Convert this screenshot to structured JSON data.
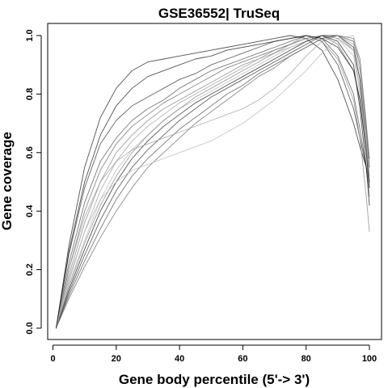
{
  "chart_data": {
    "type": "line",
    "title": "GSE36552| TruSeq",
    "xlabel": "Gene body percentile (5'-> 3')",
    "ylabel": "Gene coverage",
    "xlim": [
      1,
      100
    ],
    "ylim": [
      0,
      1.0
    ],
    "xticks": [
      0,
      20,
      40,
      60,
      80,
      100
    ],
    "yticks": [
      0.0,
      0.2,
      0.4,
      0.6,
      0.8,
      1.0
    ],
    "xtick_labels": [
      "0",
      "20",
      "40",
      "60",
      "80",
      "100"
    ],
    "ytick_labels": [
      "0.0",
      "0.2",
      "0.4",
      "0.6",
      "0.8",
      "1.0"
    ],
    "grid": false,
    "legend": "none",
    "line_color": "#000000",
    "series_description_note": "",
    "series": [
      {
        "x": [
          1,
          5,
          10,
          15,
          20,
          25,
          30,
          35,
          40,
          45,
          50,
          55,
          60,
          65,
          70,
          75,
          80,
          85,
          90,
          95,
          97,
          99,
          100
        ],
        "values": [
          0.0,
          0.28,
          0.55,
          0.72,
          0.82,
          0.88,
          0.91,
          0.92,
          0.93,
          0.94,
          0.95,
          0.96,
          0.97,
          0.98,
          0.99,
          1.0,
          0.99,
          0.95,
          0.85,
          0.7,
          0.62,
          0.55,
          0.5
        ]
      },
      {
        "x": [
          1,
          5,
          10,
          15,
          20,
          25,
          30,
          35,
          40,
          45,
          50,
          55,
          60,
          65,
          70,
          75,
          80,
          85,
          90,
          95,
          97,
          99,
          100
        ],
        "values": [
          0.0,
          0.25,
          0.48,
          0.63,
          0.71,
          0.76,
          0.79,
          0.82,
          0.85,
          0.87,
          0.9,
          0.92,
          0.94,
          0.96,
          0.98,
          0.99,
          1.0,
          0.98,
          0.9,
          0.75,
          0.65,
          0.55,
          0.48
        ]
      },
      {
        "x": [
          1,
          5,
          10,
          15,
          20,
          25,
          30,
          35,
          40,
          45,
          50,
          55,
          60,
          65,
          70,
          75,
          80,
          85,
          90,
          95,
          97,
          99,
          100
        ],
        "values": [
          0.0,
          0.22,
          0.43,
          0.57,
          0.65,
          0.71,
          0.75,
          0.78,
          0.82,
          0.85,
          0.88,
          0.9,
          0.92,
          0.94,
          0.96,
          0.98,
          1.0,
          0.99,
          0.93,
          0.8,
          0.68,
          0.55,
          0.45
        ]
      },
      {
        "x": [
          1,
          5,
          10,
          15,
          20,
          25,
          30,
          35,
          40,
          45,
          50,
          55,
          60,
          65,
          70,
          75,
          80,
          85,
          90,
          95,
          97,
          99,
          100
        ],
        "values": [
          0.0,
          0.2,
          0.4,
          0.54,
          0.63,
          0.69,
          0.73,
          0.77,
          0.8,
          0.83,
          0.86,
          0.89,
          0.91,
          0.93,
          0.95,
          0.97,
          0.99,
          1.0,
          0.97,
          0.88,
          0.78,
          0.6,
          0.5
        ]
      },
      {
        "x": [
          1,
          5,
          10,
          15,
          20,
          25,
          30,
          35,
          40,
          45,
          50,
          55,
          60,
          65,
          70,
          75,
          80,
          85,
          90,
          95,
          97,
          99,
          100
        ],
        "values": [
          0.0,
          0.18,
          0.36,
          0.5,
          0.6,
          0.66,
          0.71,
          0.75,
          0.78,
          0.81,
          0.84,
          0.87,
          0.9,
          0.92,
          0.95,
          0.97,
          0.99,
          1.0,
          0.99,
          0.95,
          0.85,
          0.65,
          0.52
        ]
      },
      {
        "x": [
          1,
          5,
          10,
          15,
          20,
          25,
          30,
          35,
          40,
          45,
          50,
          55,
          60,
          65,
          70,
          75,
          80,
          85,
          90,
          95,
          97,
          99,
          100
        ],
        "values": [
          0.0,
          0.16,
          0.33,
          0.47,
          0.57,
          0.64,
          0.69,
          0.73,
          0.77,
          0.8,
          0.83,
          0.86,
          0.89,
          0.92,
          0.94,
          0.96,
          0.98,
          1.0,
          1.0,
          0.97,
          0.88,
          0.66,
          0.55
        ]
      },
      {
        "x": [
          1,
          5,
          10,
          15,
          20,
          25,
          30,
          35,
          40,
          45,
          50,
          55,
          60,
          65,
          70,
          75,
          80,
          85,
          90,
          95,
          97,
          99,
          100
        ],
        "values": [
          0.0,
          0.15,
          0.3,
          0.44,
          0.54,
          0.61,
          0.66,
          0.71,
          0.75,
          0.78,
          0.81,
          0.84,
          0.87,
          0.9,
          0.93,
          0.96,
          0.98,
          1.0,
          0.99,
          0.93,
          0.8,
          0.6,
          0.45
        ]
      },
      {
        "x": [
          1,
          5,
          10,
          15,
          20,
          25,
          30,
          35,
          40,
          45,
          50,
          55,
          60,
          65,
          70,
          75,
          80,
          85,
          90,
          95,
          97,
          99,
          100
        ],
        "values": [
          0.0,
          0.13,
          0.27,
          0.4,
          0.5,
          0.58,
          0.64,
          0.69,
          0.73,
          0.77,
          0.8,
          0.83,
          0.86,
          0.89,
          0.92,
          0.95,
          0.98,
          1.0,
          0.98,
          0.9,
          0.75,
          0.55,
          0.42
        ]
      },
      {
        "x": [
          1,
          5,
          10,
          15,
          20,
          25,
          30,
          35,
          40,
          45,
          50,
          55,
          60,
          65,
          70,
          75,
          80,
          85,
          90,
          95,
          97,
          99,
          100
        ],
        "values": [
          0.0,
          0.12,
          0.25,
          0.37,
          0.47,
          0.55,
          0.61,
          0.66,
          0.71,
          0.75,
          0.79,
          0.82,
          0.85,
          0.88,
          0.91,
          0.94,
          0.97,
          1.0,
          1.0,
          0.96,
          0.85,
          0.62,
          0.5
        ]
      },
      {
        "x": [
          1,
          5,
          10,
          15,
          20,
          25,
          30,
          35,
          40,
          45,
          50,
          55,
          60,
          65,
          70,
          75,
          80,
          85,
          90,
          95,
          97,
          99,
          100
        ],
        "values": [
          0.0,
          0.11,
          0.23,
          0.34,
          0.44,
          0.52,
          0.58,
          0.63,
          0.68,
          0.72,
          0.76,
          0.8,
          0.83,
          0.87,
          0.9,
          0.93,
          0.96,
          0.99,
          1.0,
          0.98,
          0.9,
          0.68,
          0.55
        ]
      },
      {
        "x": [
          1,
          5,
          10,
          15,
          20,
          25,
          30,
          35,
          40,
          45,
          50,
          55,
          60,
          65,
          70,
          75,
          80,
          85,
          90,
          95,
          97,
          99,
          100
        ],
        "values": [
          0.0,
          0.1,
          0.21,
          0.31,
          0.4,
          0.48,
          0.55,
          0.6,
          0.65,
          0.7,
          0.74,
          0.78,
          0.82,
          0.86,
          0.89,
          0.93,
          0.96,
          0.99,
          1.0,
          0.99,
          0.92,
          0.7,
          0.58
        ]
      },
      {
        "x": [
          1,
          5,
          10,
          15,
          20,
          25,
          30,
          35,
          40,
          45,
          50,
          55,
          60,
          65,
          70,
          75,
          80,
          85,
          90,
          95,
          97,
          99,
          100
        ],
        "values": [
          0.0,
          0.14,
          0.29,
          0.42,
          0.52,
          0.6,
          0.66,
          0.71,
          0.75,
          0.79,
          0.82,
          0.85,
          0.88,
          0.91,
          0.94,
          0.97,
          1.0,
          0.98,
          0.92,
          0.78,
          0.65,
          0.45,
          0.33
        ]
      },
      {
        "x": [
          1,
          5,
          10,
          15,
          20,
          25,
          30,
          35,
          40,
          45,
          50,
          55,
          60,
          65,
          70,
          75,
          80,
          85,
          90,
          95,
          97,
          99,
          100
        ],
        "values": [
          0.0,
          0.2,
          0.38,
          0.5,
          0.57,
          0.61,
          0.63,
          0.65,
          0.67,
          0.69,
          0.71,
          0.73,
          0.75,
          0.78,
          0.82,
          0.87,
          0.93,
          0.98,
          1.0,
          0.95,
          0.82,
          0.62,
          0.5
        ]
      },
      {
        "x": [
          1,
          5,
          10,
          15,
          20,
          25,
          30,
          35,
          40,
          45,
          50,
          55,
          60,
          65,
          70,
          75,
          80,
          85,
          90,
          95,
          97,
          99,
          100
        ],
        "values": [
          0.0,
          0.17,
          0.33,
          0.44,
          0.5,
          0.54,
          0.56,
          0.58,
          0.6,
          0.62,
          0.64,
          0.67,
          0.7,
          0.74,
          0.78,
          0.83,
          0.88,
          0.94,
          0.99,
          1.0,
          0.9,
          0.65,
          0.52
        ]
      },
      {
        "x": [
          1,
          5,
          10,
          15,
          20,
          25,
          30,
          35,
          40,
          45,
          50,
          55,
          60,
          65,
          70,
          75,
          80,
          85,
          90,
          95,
          97,
          99,
          100
        ],
        "values": [
          0.0,
          0.26,
          0.5,
          0.66,
          0.76,
          0.82,
          0.86,
          0.88,
          0.9,
          0.92,
          0.93,
          0.95,
          0.96,
          0.97,
          0.98,
          0.99,
          1.0,
          0.99,
          0.96,
          0.88,
          0.78,
          0.6,
          0.48
        ]
      }
    ]
  }
}
